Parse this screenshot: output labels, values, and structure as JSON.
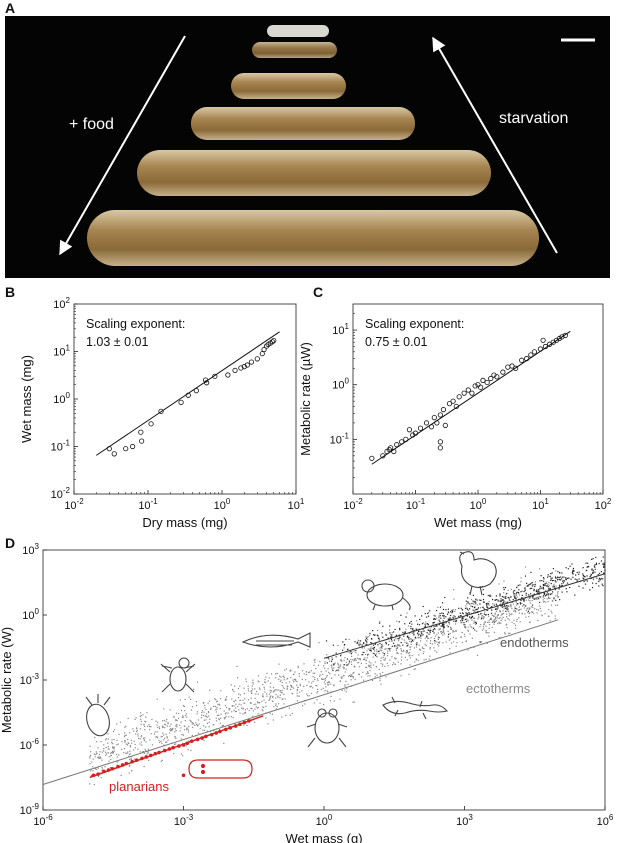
{
  "panels": {
    "a": {
      "letter": "A",
      "left_label": "+ food",
      "right_label": "starvation"
    },
    "b": {
      "letter": "B"
    },
    "c": {
      "letter": "C"
    },
    "d": {
      "letter": "D"
    }
  },
  "colors": {
    "planarian_red": "#d62020",
    "cloud_gray": "#777777",
    "photo_bg": "#040404",
    "worm_body": "#a88652"
  },
  "icons": [
    "flatworm-hydra-icon",
    "fly-icon",
    "zebrafish-icon",
    "mouse-icon",
    "chicken-icon",
    "frog-icon",
    "salamander-icon",
    "planarian-icon"
  ],
  "chart_data": [
    {
      "id": "b",
      "type": "scatter",
      "log_scale": true,
      "xlabel": "Dry mass (mg)",
      "ylabel": "Wet mass (mg)",
      "xlim": [
        0.01,
        10
      ],
      "ylim": [
        0.01,
        100
      ],
      "x_ticks": [
        {
          "v": 0.01,
          "base": "10",
          "exp": "-2"
        },
        {
          "v": 0.1,
          "base": "10",
          "exp": "-1"
        },
        {
          "v": 1,
          "base": "10",
          "exp": "0"
        },
        {
          "v": 10,
          "base": "10",
          "exp": "1"
        }
      ],
      "y_ticks": [
        {
          "v": 0.01,
          "base": "10",
          "exp": "-2"
        },
        {
          "v": 0.1,
          "base": "10",
          "exp": "-1"
        },
        {
          "v": 1,
          "base": "10",
          "exp": "0"
        },
        {
          "v": 10,
          "base": "10",
          "exp": "1"
        },
        {
          "v": 100,
          "base": "10",
          "exp": "2"
        }
      ],
      "annotation": [
        "Scaling exponent:",
        "1.03 ± 0.01"
      ],
      "fit": {
        "x": [
          0.02,
          6.0
        ],
        "y": [
          0.065,
          26
        ]
      },
      "points": {
        "x": [
          0.03,
          0.035,
          0.05,
          0.062,
          0.08,
          0.082,
          0.11,
          0.15,
          0.28,
          0.35,
          0.45,
          0.6,
          0.62,
          0.8,
          1.2,
          1.5,
          1.8,
          2.0,
          2.2,
          2.5,
          3.0,
          3.5,
          3.7,
          4.0,
          4.2,
          4.5,
          4.8,
          5.0
        ],
        "y": [
          0.09,
          0.07,
          0.09,
          0.1,
          0.2,
          0.13,
          0.3,
          0.55,
          0.85,
          1.2,
          1.5,
          2.5,
          2.2,
          3.0,
          3.2,
          4.0,
          4.5,
          4.8,
          5.2,
          6.0,
          7.0,
          9.0,
          11,
          13,
          14,
          15,
          16,
          17
        ]
      }
    },
    {
      "id": "c",
      "type": "scatter",
      "log_scale": true,
      "xlabel": "Wet mass (mg)",
      "ylabel": "Metabolic rate (µW)",
      "xlim": [
        0.01,
        100
      ],
      "ylim": [
        0.01,
        30
      ],
      "x_ticks": [
        {
          "v": 0.01,
          "base": "10",
          "exp": "-2"
        },
        {
          "v": 0.1,
          "base": "10",
          "exp": "-1"
        },
        {
          "v": 1,
          "base": "10",
          "exp": "0"
        },
        {
          "v": 10,
          "base": "10",
          "exp": "1"
        },
        {
          "v": 100,
          "base": "10",
          "exp": "2"
        }
      ],
      "y_ticks": [
        {
          "v": 0.1,
          "base": "10",
          "exp": "-1"
        },
        {
          "v": 1,
          "base": "10",
          "exp": "0"
        },
        {
          "v": 10,
          "base": "10",
          "exp": "1"
        }
      ],
      "annotation": [
        "Scaling exponent:",
        "0.75 ±  0.01"
      ],
      "fit": {
        "x": [
          0.02,
          30
        ],
        "y": [
          0.035,
          9.5
        ]
      },
      "points": {
        "x": [
          0.02,
          0.03,
          0.035,
          0.038,
          0.04,
          0.045,
          0.05,
          0.06,
          0.07,
          0.08,
          0.09,
          0.1,
          0.12,
          0.15,
          0.18,
          0.2,
          0.22,
          0.25,
          0.25,
          0.25,
          0.28,
          0.3,
          0.35,
          0.4,
          0.45,
          0.5,
          0.6,
          0.7,
          0.8,
          0.9,
          1.0,
          1.1,
          1.2,
          1.4,
          1.6,
          1.8,
          2.0,
          2.5,
          3.0,
          3.5,
          4,
          5,
          6,
          7,
          8,
          10,
          11,
          12,
          14,
          16,
          18,
          20,
          22,
          25
        ],
        "y": [
          0.045,
          0.05,
          0.06,
          0.065,
          0.07,
          0.06,
          0.08,
          0.09,
          0.1,
          0.15,
          0.12,
          0.13,
          0.16,
          0.2,
          0.17,
          0.25,
          0.2,
          0.28,
          0.09,
          0.07,
          0.35,
          0.18,
          0.45,
          0.5,
          0.4,
          0.6,
          0.7,
          0.8,
          0.7,
          0.95,
          1.0,
          0.9,
          1.2,
          1.1,
          1.3,
          1.5,
          1.4,
          1.7,
          2.1,
          2.2,
          2.0,
          2.8,
          3.0,
          3.5,
          4.0,
          4.5,
          6.5,
          5.0,
          5.5,
          6.0,
          6.5,
          7.0,
          7.5,
          8.0
        ]
      }
    },
    {
      "id": "d",
      "type": "scatter",
      "log_scale": true,
      "xlabel": "Wet mass (g)",
      "ylabel": "Metabolic rate (W)",
      "xlim": [
        1e-06,
        1000000.0
      ],
      "ylim": [
        1e-09,
        1000.0
      ],
      "x_ticks": [
        {
          "v": 1e-06,
          "base": "10",
          "exp": "-6"
        },
        {
          "v": 0.001,
          "base": "10",
          "exp": "-3"
        },
        {
          "v": 1,
          "base": "10",
          "exp": "0"
        },
        {
          "v": 1000.0,
          "base": "10",
          "exp": "3"
        },
        {
          "v": 1000000.0,
          "base": "10",
          "exp": "6"
        }
      ],
      "y_ticks": [
        {
          "v": 1e-09,
          "base": "10",
          "exp": "-9"
        },
        {
          "v": 1e-06,
          "base": "10",
          "exp": "-6"
        },
        {
          "v": 0.001,
          "base": "10",
          "exp": "-3"
        },
        {
          "v": 1,
          "base": "10",
          "exp": "0"
        },
        {
          "v": 1000.0,
          "base": "10",
          "exp": "3"
        }
      ],
      "series": [
        {
          "name": "endotherms",
          "fit": {
            "x": [
              1,
              1000000.0
            ],
            "y": [
              0.01,
              80
            ]
          },
          "cloud": {
            "x_range": [
              1,
              1000000.0
            ],
            "slope": 0.69,
            "intercept_log10": -2.0,
            "spread": 0.35,
            "count": 700
          }
        },
        {
          "name": "ectotherms",
          "fit": {
            "x": [
              1e-06,
              100000.0
            ],
            "y": [
              1.5e-08,
              0.6
            ]
          },
          "cloud": {
            "x_range": [
              1e-05,
              100000.0
            ],
            "slope": 0.75,
            "intercept_log10": -2.8,
            "spread": 0.55,
            "count": 1600
          }
        },
        {
          "name": "planarians",
          "fit": {
            "x": [
              1e-05,
              0.05
            ],
            "y": [
              3.2e-08,
              2.2e-05
            ]
          },
          "points": {
            "x": [
              1.2e-05,
              1.5e-05,
              2e-05,
              2.5e-05,
              3e-05,
              4e-05,
              5e-05,
              6e-05,
              8e-05,
              0.0001,
              0.00013,
              0.00016,
              0.0002,
              0.00025,
              0.0003,
              0.0004,
              0.0005,
              0.0006,
              0.0008,
              0.001,
              0.001,
              0.0012,
              0.0015,
              0.002,
              0.0025,
              0.003,
              0.004,
              0.005,
              0.006,
              0.008,
              0.01,
              0.013,
              0.016,
              0.02,
              0.025
            ],
            "y": [
              4e-08,
              4.5e-08,
              6e-08,
              7e-08,
              8e-08,
              1e-07,
              1.2e-07,
              1.4e-07,
              1.7e-07,
              2e-07,
              2.4e-07,
              2.8e-07,
              3.3e-07,
              4e-07,
              4.5e-07,
              5.5e-07,
              6.5e-07,
              7.5e-07,
              9e-07,
              1e-06,
              4e-08,
              1.2e-06,
              1.5e-06,
              1.8e-06,
              2.1e-06,
              2.5e-06,
              3e-06,
              3.6e-06,
              4.2e-06,
              5.2e-06,
              6.2e-06,
              7.5e-06,
              9e-06,
              1.1e-05,
              1.3e-05
            ]
          }
        }
      ]
    }
  ]
}
